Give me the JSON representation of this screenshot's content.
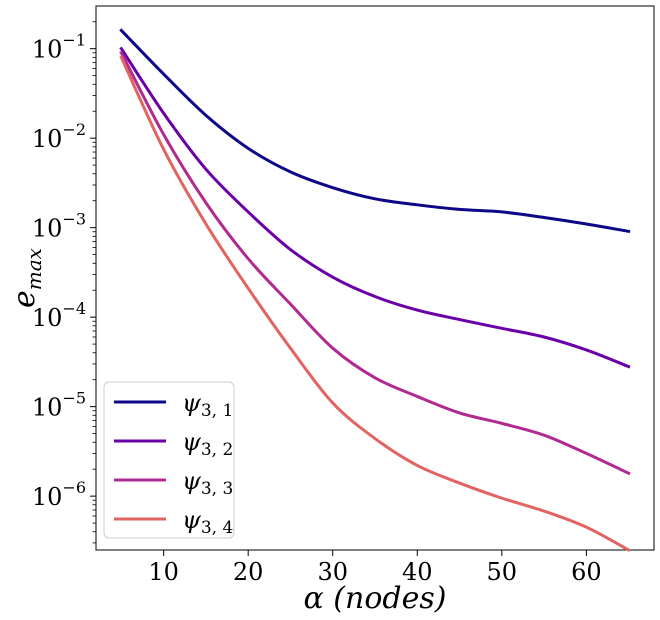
{
  "chart_data": {
    "type": "line",
    "title": "",
    "xlabel": "α (nodes)",
    "ylabel": "e_max",
    "y_scale": "log",
    "xlim": [
      2,
      68
    ],
    "ylim": [
      2.5e-07,
      0.3
    ],
    "x_ticks": [
      10,
      20,
      30,
      40,
      50,
      60
    ],
    "y_ticks": [
      {
        "value": 0.1,
        "base": "10",
        "exp": "−1"
      },
      {
        "value": 0.01,
        "base": "10",
        "exp": "−2"
      },
      {
        "value": 0.001,
        "base": "10",
        "exp": "−3"
      },
      {
        "value": 0.0001,
        "base": "10",
        "exp": "−4"
      },
      {
        "value": 1e-05,
        "base": "10",
        "exp": "−5"
      },
      {
        "value": 1e-06,
        "base": "10",
        "exp": "−6"
      }
    ],
    "grid": false,
    "legend_position": "bottom-left",
    "x": [
      5,
      10,
      15,
      20,
      25,
      30,
      35,
      40,
      45,
      50,
      55,
      60,
      65
    ],
    "series": [
      {
        "name": "ψ3, 1",
        "sym": "ψ",
        "sub": "3, 1",
        "color": "#0d0887",
        "values": [
          0.16,
          0.052,
          0.018,
          0.0077,
          0.0042,
          0.0028,
          0.0021,
          0.0018,
          0.0016,
          0.0015,
          0.0013,
          0.0011,
          0.00091
        ]
      },
      {
        "name": "ψ3, 2",
        "sym": "ψ",
        "sub": "3, 2",
        "color": "#6a00a8",
        "values": [
          0.1,
          0.019,
          0.0045,
          0.0015,
          0.00057,
          0.00028,
          0.00017,
          0.00012,
          9.4e-05,
          7.5e-05,
          6e-05,
          4.3e-05,
          2.8e-05
        ]
      },
      {
        "name": "ψ3, 3",
        "sym": "ψ",
        "sub": "3, 3",
        "color": "#b12a90",
        "values": [
          0.09,
          0.011,
          0.0019,
          0.00045,
          0.00014,
          4.5e-05,
          2.1e-05,
          1.3e-05,
          8.5e-06,
          6.5e-06,
          4.8e-06,
          3e-06,
          1.8e-06
        ]
      },
      {
        "name": "ψ3, 4",
        "sym": "ψ",
        "sub": "3, 4",
        "color": "#e16462",
        "values": [
          0.08,
          0.0075,
          0.0011,
          0.00021,
          4.5e-05,
          1.1e-05,
          4.4e-06,
          2.2e-06,
          1.4e-06,
          9.5e-07,
          6.8e-07,
          4.5e-07,
          2.5e-07
        ]
      }
    ]
  }
}
